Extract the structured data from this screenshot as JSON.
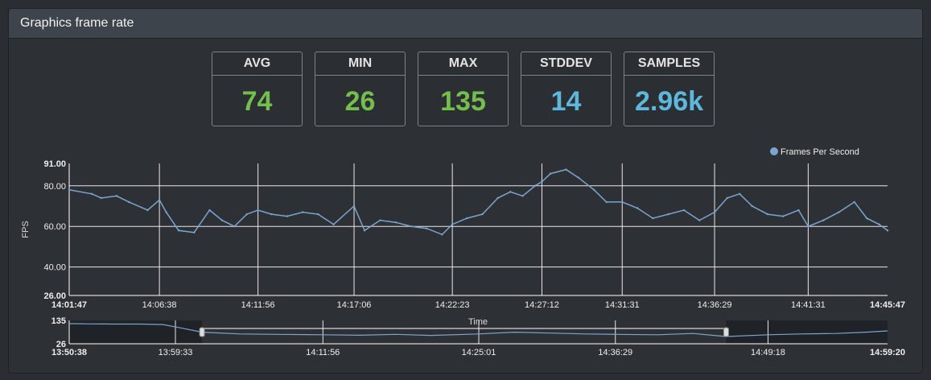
{
  "panel": {
    "title": "Graphics frame rate"
  },
  "stats": [
    {
      "label": "AVG",
      "value": "74",
      "color": "#74bf4c"
    },
    {
      "label": "MIN",
      "value": "26",
      "color": "#74bf4c"
    },
    {
      "label": "MAX",
      "value": "135",
      "color": "#74bf4c"
    },
    {
      "label": "STDDEV",
      "value": "14",
      "color": "#5db8db"
    },
    {
      "label": "SAMPLES",
      "value": "2.96k",
      "color": "#5db8db"
    }
  ],
  "chart_data": [
    {
      "type": "line",
      "legend": {
        "entries": [
          "Frames Per Second"
        ],
        "position": "top-right"
      },
      "xlabel": "",
      "ylabel": "FPS",
      "ylim": [
        26,
        91
      ],
      "y_ticks": [
        "91.00",
        "80.00",
        "60.00",
        "40.00",
        "26.00"
      ],
      "x_ticks": [
        "14:01:47",
        "14:06:38",
        "14:11:56",
        "14:17:06",
        "14:22:23",
        "14:27:12",
        "14:31:31",
        "14:36:29",
        "14:41:31",
        "14:45:47"
      ],
      "grid": true,
      "series": [
        {
          "name": "Frames Per Second",
          "color": "#7ba5cf",
          "x": [
            "14:01:47",
            "14:03:00",
            "14:03:30",
            "14:04:20",
            "14:05:00",
            "14:06:00",
            "14:06:38",
            "14:07:00",
            "14:07:40",
            "14:08:30",
            "14:09:20",
            "14:10:00",
            "14:10:40",
            "14:11:20",
            "14:11:56",
            "14:12:40",
            "14:13:30",
            "14:14:20",
            "14:15:10",
            "14:16:00",
            "14:17:06",
            "14:17:40",
            "14:18:30",
            "14:19:20",
            "14:20:10",
            "14:21:00",
            "14:21:50",
            "14:22:23",
            "14:23:10",
            "14:24:00",
            "14:24:50",
            "14:25:30",
            "14:26:10",
            "14:26:50",
            "14:27:12",
            "14:27:40",
            "14:28:30",
            "14:29:10",
            "14:30:00",
            "14:30:40",
            "14:31:31",
            "14:32:20",
            "14:33:10",
            "14:34:00",
            "14:34:50",
            "14:35:40",
            "14:36:29",
            "14:37:10",
            "14:37:50",
            "14:38:30",
            "14:39:20",
            "14:40:10",
            "14:41:00",
            "14:41:31",
            "14:42:20",
            "14:43:10",
            "14:44:00",
            "14:44:40",
            "14:45:20",
            "14:45:47"
          ],
          "values": [
            78,
            76,
            74,
            75,
            72,
            68,
            73,
            67,
            58,
            57,
            68,
            63,
            60,
            66,
            68,
            66,
            65,
            67,
            66,
            61,
            70,
            58,
            63,
            62,
            60,
            59,
            56,
            61,
            64,
            66,
            74,
            77,
            75,
            80,
            82,
            86,
            88,
            84,
            78,
            72,
            72,
            69,
            64,
            66,
            68,
            63,
            67,
            74,
            76,
            70,
            66,
            65,
            68,
            60,
            63,
            67,
            72,
            64,
            61,
            58
          ]
        }
      ]
    },
    {
      "type": "line",
      "ylim": [
        26,
        135
      ],
      "y_ticks": [
        "135",
        "26"
      ],
      "xlabel": "Time",
      "x_ticks": [
        "13:50:38",
        "13:59:33",
        "14:11:56",
        "14:25:01",
        "14:36:29",
        "14:49:18",
        "14:59:20"
      ],
      "grid": true,
      "selection": {
        "from": "14:01:47",
        "to": "14:45:47"
      },
      "series": [
        {
          "name": "Frames Per Second",
          "color": "#7ba5cf",
          "x": [
            "13:50:38",
            "13:52:30",
            "13:54:30",
            "13:56:30",
            "13:58:30",
            "14:00:00",
            "14:01:47",
            "14:05:00",
            "14:08:00",
            "14:11:56",
            "14:15:00",
            "14:18:00",
            "14:21:00",
            "14:25:01",
            "14:28:00",
            "14:31:00",
            "14:34:00",
            "14:36:29",
            "14:40:00",
            "14:43:00",
            "14:45:47",
            "14:49:18",
            "14:52:00",
            "14:55:00",
            "14:57:30",
            "14:59:20"
          ],
          "values": [
            120,
            119,
            118,
            118,
            116,
            100,
            80,
            72,
            70,
            68,
            66,
            70,
            65,
            72,
            80,
            76,
            72,
            70,
            68,
            74,
            60,
            68,
            72,
            74,
            80,
            86
          ]
        }
      ]
    }
  ]
}
